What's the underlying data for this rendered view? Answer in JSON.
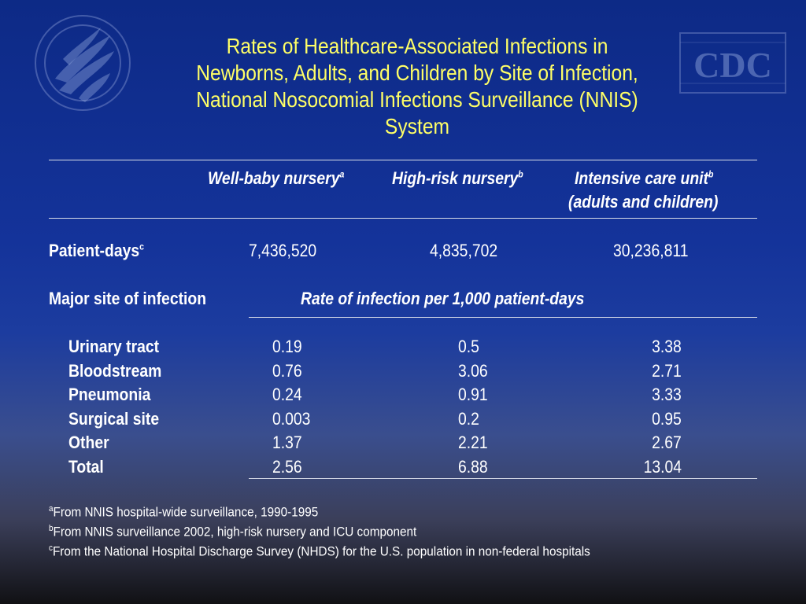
{
  "title_lines": [
    "Rates of Healthcare-Associated Infections in",
    "Newborns, Adults, and Children by Site of Infection,",
    "National Nosocomial Infections Surveillance (NNIS)",
    "System"
  ],
  "logo_cdc_text": "CDC",
  "columns": [
    {
      "label": "Well-baby nursery",
      "sup": "a"
    },
    {
      "label": "High-risk nursery",
      "sup": "b"
    },
    {
      "label": "Intensive care unit",
      "sup": "b",
      "label2": "(adults and children)"
    }
  ],
  "patient_days": {
    "label": "Patient-days",
    "sup": "c",
    "values": [
      "7,436,520",
      "4,835,702",
      "30,236,811"
    ]
  },
  "major_site_label": "Major site of infection",
  "rate_label": "Rate of infection per 1,000 patient-days",
  "rows": [
    {
      "site": "Urinary tract",
      "values": [
        "0.19",
        "0.5",
        "3.38"
      ]
    },
    {
      "site": "Bloodstream",
      "values": [
        "0.76",
        "3.06",
        "2.71"
      ]
    },
    {
      "site": "Pneumonia",
      "values": [
        "0.24",
        "0.91",
        "3.33"
      ]
    },
    {
      "site": "Surgical site",
      "values": [
        "0.003",
        "0.2",
        "0.95"
      ]
    },
    {
      "site": "Other",
      "values": [
        "1.37",
        "2.21",
        "2.67"
      ]
    },
    {
      "site": "Total",
      "values": [
        "2.56",
        "6.88",
        "13.04"
      ]
    }
  ],
  "footnotes": [
    {
      "sup": "a",
      "text": "From NNIS hospital-wide surveillance, 1990-1995"
    },
    {
      "sup": "b",
      "text": "From NNIS surveillance 2002, high-risk nursery and ICU component"
    },
    {
      "sup": "c",
      "text": "From the National Hospital Discharge Survey (NHDS) for the U.S. population in non-federal hospitals"
    }
  ]
}
